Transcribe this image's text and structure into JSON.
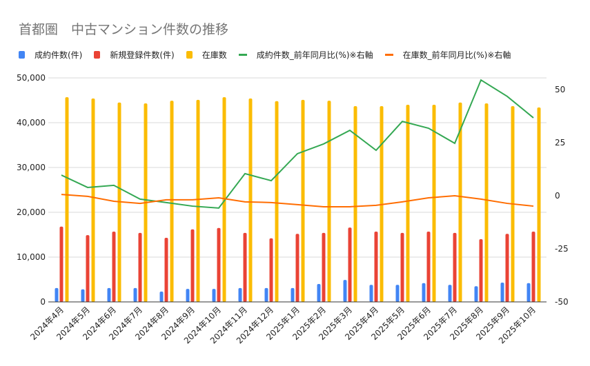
{
  "chart_data": {
    "type": "bar+line",
    "title": "首都圏　中古マンション件数の推移",
    "categories": [
      "2024年4月",
      "2024年5月",
      "2024年6月",
      "2024年7月",
      "2024年8月",
      "2024年9月",
      "2024年10月",
      "2024年11月",
      "2024年12月",
      "2025年1月",
      "2025年2月",
      "2025年3月",
      "2025年4月",
      "2025年5月",
      "2025年6月",
      "2025年7月",
      "2025年8月",
      "2025年9月",
      "2025年10月"
    ],
    "left_axis": {
      "range": [
        0,
        50000
      ],
      "ticks": [
        "0",
        "10,000",
        "20,000",
        "30,000",
        "40,000",
        "50,000"
      ],
      "tick_values": [
        0,
        10000,
        20000,
        30000,
        40000,
        50000
      ]
    },
    "right_axis": {
      "range": [
        -50,
        55.5
      ],
      "ticks": [
        "-50",
        "-25",
        "0",
        "25",
        "50"
      ],
      "tick_values": [
        -50,
        -25,
        0,
        25,
        50
      ]
    },
    "grid": true,
    "legend_placement": "top",
    "series": [
      {
        "name": "成約件数(件)",
        "type": "bar",
        "axis": "left",
        "color": "#4285f4",
        "values": [
          3100,
          2800,
          3100,
          3100,
          2300,
          2900,
          2900,
          3100,
          3100,
          3100,
          4000,
          4900,
          3800,
          3800,
          4200,
          3800,
          3500,
          4300,
          4200
        ]
      },
      {
        "name": "新規登録件数(件)",
        "type": "bar",
        "axis": "left",
        "color": "#ea4335",
        "values": [
          16800,
          14900,
          15700,
          15400,
          14300,
          16200,
          16500,
          15400,
          14200,
          15200,
          15400,
          16600,
          15700,
          15400,
          15700,
          15400,
          14000,
          15200,
          15700
        ]
      },
      {
        "name": "在庫数",
        "type": "bar",
        "axis": "left",
        "color": "#fbbc04",
        "values": [
          45700,
          45400,
          44500,
          44300,
          44900,
          45100,
          45700,
          45400,
          44800,
          45100,
          44900,
          43700,
          43700,
          44000,
          44000,
          44500,
          44300,
          43700,
          43400
        ]
      },
      {
        "name": "成約件数_前年同月比(%)※右軸",
        "type": "line",
        "axis": "right",
        "color": "#34a853",
        "values": [
          9.7,
          3.9,
          4.9,
          -1.6,
          -3.2,
          -4.9,
          -5.8,
          10.4,
          7.1,
          19.8,
          24.4,
          30.8,
          21.4,
          35.0,
          31.8,
          24.7,
          54.5,
          46.8,
          36.7
        ]
      },
      {
        "name": "在庫数_前年同月比(%)※右軸",
        "type": "line",
        "axis": "right",
        "color": "#ff6d01",
        "values": [
          0.6,
          -0.3,
          -2.6,
          -3.6,
          -1.9,
          -1.9,
          -1.0,
          -2.9,
          -3.2,
          -4.2,
          -5.2,
          -5.2,
          -4.5,
          -2.9,
          -1.0,
          0.0,
          -1.6,
          -3.6,
          -4.9
        ]
      }
    ]
  }
}
